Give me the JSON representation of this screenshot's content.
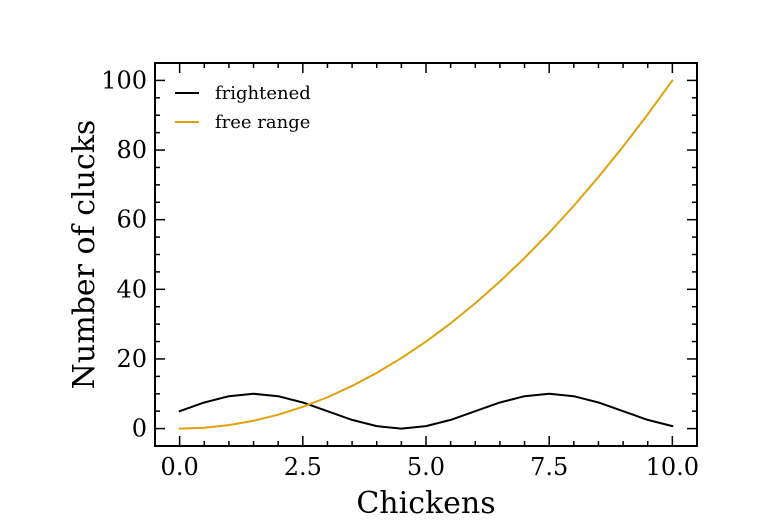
{
  "chart_data": {
    "type": "line",
    "title": "",
    "xlabel": "Chickens",
    "ylabel": "Number of clucks",
    "xlim": [
      -0.5,
      10.5
    ],
    "ylim": [
      -5,
      105
    ],
    "xticks": [
      0.0,
      2.5,
      5.0,
      7.5,
      10.0
    ],
    "xtick_labels": [
      "0.0",
      "2.5",
      "5.0",
      "7.5",
      "10.0"
    ],
    "yticks": [
      0,
      20,
      40,
      60,
      80,
      100
    ],
    "ytick_labels": [
      "0",
      "20",
      "40",
      "60",
      "80",
      "100"
    ],
    "grid": false,
    "legend_position": "top-left",
    "series": [
      {
        "name": "frightened",
        "color": "#000000",
        "x": [
          0,
          0.5,
          1.0,
          1.5,
          2.0,
          2.5,
          3.0,
          3.5,
          4.0,
          4.5,
          5.0,
          5.5,
          6.0,
          6.5,
          7.0,
          7.5,
          8.0,
          8.5,
          9.0,
          9.5,
          10.0
        ],
        "y": [
          5.0,
          7.5,
          9.3,
          10.0,
          9.3,
          7.5,
          5.0,
          2.5,
          0.7,
          0.0,
          0.7,
          2.5,
          5.0,
          7.5,
          9.3,
          10.0,
          9.3,
          7.5,
          5.0,
          2.5,
          0.7
        ]
      },
      {
        "name": "free range",
        "color": "#e1a10c",
        "x": [
          0,
          0.5,
          1.0,
          1.5,
          2.0,
          2.5,
          3.0,
          3.5,
          4.0,
          4.5,
          5.0,
          5.5,
          6.0,
          6.5,
          7.0,
          7.5,
          8.0,
          8.5,
          9.0,
          9.5,
          10.0
        ],
        "y": [
          0,
          0.25,
          1,
          2.25,
          4,
          6.25,
          9,
          12.25,
          16,
          20.25,
          25,
          30.25,
          36,
          42.25,
          49,
          56.25,
          64,
          72.25,
          81,
          90.25,
          100
        ]
      }
    ]
  }
}
